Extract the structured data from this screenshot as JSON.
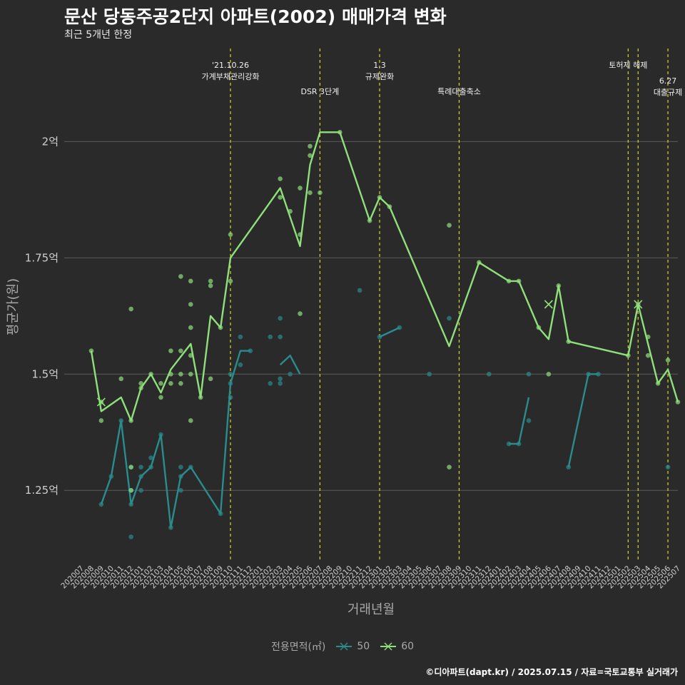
{
  "title": "문산 당동주공2단지 아파트(2002) 매매가격 변화",
  "subtitle": "최근 5개년 한정",
  "caption": "©디아파트(dapt.kr) / 2025.07.15 / 자료=국토교통부 실거래가",
  "legend": {
    "title": "전용면적(㎡)",
    "items": [
      {
        "label": "50",
        "color": "#2a8c8c"
      },
      {
        "label": "60",
        "color": "#8fe07a"
      }
    ]
  },
  "colors": {
    "background": "#2a2a2b",
    "grid": "#5a5a5a",
    "event_line": "#d8d820",
    "text": "#a8a8a8"
  },
  "chart_data": {
    "type": "line",
    "xlabel": "거래년월",
    "ylabel": "평균가(원)",
    "ylim": [
      1.1,
      2.2
    ],
    "y_ticks": [
      1.25,
      1.5,
      1.75,
      2.0
    ],
    "y_tick_labels": [
      "1.25억",
      "1.5억",
      "1.75억",
      "2억"
    ],
    "grid": true,
    "categories": [
      "202007",
      "202008",
      "202009",
      "202010",
      "202011",
      "202012",
      "202101",
      "202102",
      "202103",
      "202104",
      "202105",
      "202106",
      "202107",
      "202108",
      "202109",
      "202110",
      "202111",
      "202112",
      "202201",
      "202202",
      "202203",
      "202204",
      "202205",
      "202206",
      "202207",
      "202208",
      "202209",
      "202210",
      "202211",
      "202212",
      "202301",
      "202302",
      "202303",
      "202304",
      "202305",
      "202306",
      "202307",
      "202308",
      "202309",
      "202310",
      "202311",
      "202312",
      "202401",
      "202402",
      "202403",
      "202404",
      "202405",
      "202406",
      "202407",
      "202408",
      "202409",
      "202410",
      "202411",
      "202412",
      "202501",
      "202502",
      "202503",
      "202504",
      "202505",
      "202506",
      "202507"
    ],
    "events": [
      {
        "x": "202110",
        "lines": [
          "'21.10.26",
          "가계부채관리강화"
        ],
        "row": 1
      },
      {
        "x": "202207",
        "lines": [
          "DSR 3단계"
        ],
        "row": 2
      },
      {
        "x": "202301",
        "lines": [
          "1.3",
          "규제완화"
        ],
        "row": 1
      },
      {
        "x": "202309",
        "lines": [
          "특례대출축소"
        ],
        "row": 2
      },
      {
        "x": "202502",
        "lines": [
          "토허제 해제"
        ],
        "row": 1
      },
      {
        "x": "202503",
        "lines": [],
        "row": 1
      },
      {
        "x": "202506",
        "lines": [
          "6.27",
          "대출규제"
        ],
        "row": 1.6
      }
    ],
    "series": [
      {
        "name": "50",
        "color": "#2a8c8c",
        "line_segments": [
          [
            [
              "202009",
              1.22
            ],
            [
              "202010",
              1.28
            ],
            [
              "202011",
              1.4
            ],
            [
              "202012",
              1.22
            ],
            [
              "202101",
              1.28
            ],
            [
              "202102",
              1.3
            ],
            [
              "202103",
              1.37
            ],
            [
              "202104",
              1.17
            ],
            [
              "202105",
              1.28
            ],
            [
              "202106",
              1.3
            ],
            [
              "202109",
              1.2
            ],
            [
              "202110",
              1.48
            ],
            [
              "202111",
              1.55
            ],
            [
              "202112",
              1.55
            ]
          ],
          [
            [
              "202203",
              1.52
            ],
            [
              "202204",
              1.54
            ],
            [
              "202205",
              1.5
            ]
          ],
          [
            [
              "202301",
              1.58
            ],
            [
              "202303",
              1.6
            ]
          ],
          [
            [
              "202402",
              1.35
            ],
            [
              "202403",
              1.35
            ],
            [
              "202404",
              1.45
            ]
          ],
          [
            [
              "202408",
              1.3
            ],
            [
              "202410",
              1.5
            ],
            [
              "202411",
              1.5
            ]
          ]
        ],
        "points": [
          [
            "202009",
            1.22
          ],
          [
            "202010",
            1.28
          ],
          [
            "202011",
            1.4
          ],
          [
            "202012",
            1.15
          ],
          [
            "202012",
            1.22
          ],
          [
            "202012",
            1.25
          ],
          [
            "202012",
            1.3
          ],
          [
            "202101",
            1.25
          ],
          [
            "202101",
            1.28
          ],
          [
            "202101",
            1.3
          ],
          [
            "202102",
            1.3
          ],
          [
            "202102",
            1.32
          ],
          [
            "202103",
            1.37
          ],
          [
            "202104",
            1.17
          ],
          [
            "202105",
            1.25
          ],
          [
            "202105",
            1.28
          ],
          [
            "202105",
            1.3
          ],
          [
            "202106",
            1.3
          ],
          [
            "202109",
            1.2
          ],
          [
            "202110",
            1.45
          ],
          [
            "202110",
            1.48
          ],
          [
            "202110",
            1.5
          ],
          [
            "202111",
            1.52
          ],
          [
            "202111",
            1.58
          ],
          [
            "202112",
            1.55
          ],
          [
            "202202",
            1.48
          ],
          [
            "202202",
            1.58
          ],
          [
            "202203",
            1.48
          ],
          [
            "202203",
            1.49
          ],
          [
            "202203",
            1.58
          ],
          [
            "202203",
            1.62
          ],
          [
            "202204",
            1.5
          ],
          [
            "202211",
            1.68
          ],
          [
            "202301",
            1.58
          ],
          [
            "202303",
            1.6
          ],
          [
            "202306",
            1.5
          ],
          [
            "202308",
            1.62
          ],
          [
            "202312",
            1.5
          ],
          [
            "202402",
            1.35
          ],
          [
            "202403",
            1.35
          ],
          [
            "202404",
            1.4
          ],
          [
            "202404",
            1.5
          ],
          [
            "202408",
            1.3
          ],
          [
            "202410",
            1.5
          ],
          [
            "202411",
            1.5
          ],
          [
            "202506",
            1.3
          ]
        ],
        "x_markers": []
      },
      {
        "name": "60",
        "color": "#8fe07a",
        "line_segments": [
          [
            [
              "202008",
              1.55
            ],
            [
              "202009",
              1.42
            ],
            [
              "202011",
              1.45
            ],
            [
              "202012",
              1.4
            ],
            [
              "202101",
              1.47
            ],
            [
              "202102",
              1.5
            ],
            [
              "202103",
              1.46
            ],
            [
              "202104",
              1.51
            ],
            [
              "202106",
              1.565
            ],
            [
              "202107",
              1.45
            ],
            [
              "202108",
              1.625
            ],
            [
              "202109",
              1.6
            ],
            [
              "202110",
              1.75
            ],
            [
              "202203",
              1.9
            ],
            [
              "202205",
              1.775
            ],
            [
              "202206",
              1.95
            ],
            [
              "202207",
              2.02
            ],
            [
              "202209",
              2.02
            ],
            [
              "202212",
              1.83
            ],
            [
              "202301",
              1.88
            ],
            [
              "202302",
              1.86
            ],
            [
              "202308",
              1.56
            ],
            [
              "202311",
              1.74
            ],
            [
              "202402",
              1.7
            ],
            [
              "202403",
              1.7
            ],
            [
              "202405",
              1.6
            ],
            [
              "202406",
              1.575
            ],
            [
              "202407",
              1.69
            ],
            [
              "202408",
              1.57
            ],
            [
              "202502",
              1.54
            ],
            [
              "202503",
              1.65
            ],
            [
              "202505",
              1.48
            ],
            [
              "202506",
              1.51
            ],
            [
              "202507",
              1.44
            ]
          ]
        ],
        "points": [
          [
            "202008",
            1.55
          ],
          [
            "202009",
            1.4
          ],
          [
            "202009",
            1.44
          ],
          [
            "202011",
            1.49
          ],
          [
            "202012",
            1.25
          ],
          [
            "202012",
            1.3
          ],
          [
            "202012",
            1.4
          ],
          [
            "202012",
            1.64
          ],
          [
            "202101",
            1.47
          ],
          [
            "202101",
            1.48
          ],
          [
            "202102",
            1.5
          ],
          [
            "202103",
            1.45
          ],
          [
            "202103",
            1.48
          ],
          [
            "202104",
            1.48
          ],
          [
            "202104",
            1.5
          ],
          [
            "202104",
            1.55
          ],
          [
            "202105",
            1.48
          ],
          [
            "202105",
            1.5
          ],
          [
            "202105",
            1.55
          ],
          [
            "202105",
            1.71
          ],
          [
            "202106",
            1.4
          ],
          [
            "202106",
            1.5
          ],
          [
            "202106",
            1.54
          ],
          [
            "202106",
            1.6
          ],
          [
            "202106",
            1.65
          ],
          [
            "202106",
            1.7
          ],
          [
            "202107",
            1.45
          ],
          [
            "202108",
            1.49
          ],
          [
            "202108",
            1.69
          ],
          [
            "202108",
            1.7
          ],
          [
            "202109",
            1.6
          ],
          [
            "202110",
            1.7
          ],
          [
            "202110",
            1.8
          ],
          [
            "202203",
            1.88
          ],
          [
            "202203",
            1.92
          ],
          [
            "202204",
            1.85
          ],
          [
            "202205",
            1.63
          ],
          [
            "202205",
            1.8
          ],
          [
            "202205",
            1.9
          ],
          [
            "202206",
            1.89
          ],
          [
            "202206",
            1.97
          ],
          [
            "202206",
            1.99
          ],
          [
            "202207",
            1.89
          ],
          [
            "202209",
            2.02
          ],
          [
            "202212",
            1.83
          ],
          [
            "202301",
            1.88
          ],
          [
            "202302",
            1.86
          ],
          [
            "202308",
            1.3
          ],
          [
            "202308",
            1.82
          ],
          [
            "202311",
            1.74
          ],
          [
            "202402",
            1.7
          ],
          [
            "202403",
            1.7
          ],
          [
            "202405",
            1.6
          ],
          [
            "202406",
            1.5
          ],
          [
            "202407",
            1.69
          ],
          [
            "202408",
            1.57
          ],
          [
            "202502",
            1.54
          ],
          [
            "202503",
            1.65
          ],
          [
            "202504",
            1.54
          ],
          [
            "202504",
            1.58
          ],
          [
            "202505",
            1.48
          ],
          [
            "202506",
            1.53
          ],
          [
            "202507",
            1.44
          ]
        ],
        "x_markers": [
          [
            "202009",
            1.44
          ],
          [
            "202406",
            1.65
          ],
          [
            "202503",
            1.65
          ]
        ]
      }
    ]
  }
}
